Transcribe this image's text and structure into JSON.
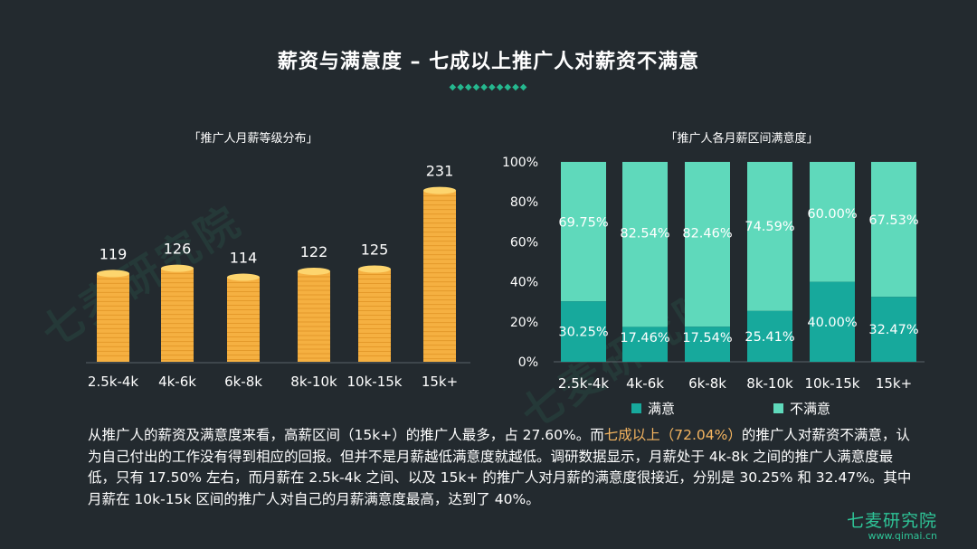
{
  "title": "薪资与满意度 – 七成以上推广人对薪资不满意",
  "decor": "◆◆◆◆◆◆◆◆◆◆",
  "watermark": "七麦研究院",
  "chart_data": [
    {
      "type": "bar",
      "title": "「推广人月薪等级分布」",
      "categories": [
        "2.5k-4k",
        "4k-6k",
        "6k-8k",
        "8k-10k",
        "10k-15k",
        "15k+"
      ],
      "values": [
        119,
        126,
        114,
        122,
        125,
        231
      ],
      "colors": {
        "bar": "#f5b041",
        "top": "#fdd56e"
      }
    },
    {
      "type": "bar",
      "stacked": true,
      "title": "「推广人各月薪区间满意度」",
      "categories": [
        "2.5k-4k",
        "4k-6k",
        "6k-8k",
        "8k-10k",
        "10k-15k",
        "15k+"
      ],
      "y_ticks": [
        "0%",
        "20%",
        "40%",
        "60%",
        "80%",
        "100%"
      ],
      "ylim": [
        0,
        100
      ],
      "series": [
        {
          "name": "满意",
          "values": [
            30.25,
            17.46,
            17.54,
            25.41,
            40.0,
            32.47
          ],
          "labels": [
            "30.25%",
            "17.46%",
            "17.54%",
            "25.41%",
            "40.00%",
            "32.47%"
          ],
          "color": "#17a99c"
        },
        {
          "name": "不满意",
          "values": [
            69.75,
            82.54,
            82.46,
            74.59,
            60.0,
            67.53
          ],
          "labels": [
            "69.75%",
            "82.54%",
            "82.46%",
            "74.59%",
            "60.00%",
            "67.53%"
          ],
          "color": "#5fd9bb"
        }
      ]
    }
  ],
  "paragraph": {
    "p1": "从推广人的薪资及满意度来看，高薪区间（15k+）的推广人最多，占 27.60%。而",
    "highlight": "七成以上（72.04%）",
    "p2": "的推广人对薪资不满意，认为自己付出的工作没有得到相应的回报。但并不是月薪越低满意度就越低。调研数据显示，月薪处于 4k-8k 之间的推广人满意度最低，只有 17.50% 左右，而月薪在 2.5k-4k 之间、以及 15k+ 的推广人对月薪的满意度很接近，分别是 30.25% 和 32.47%。其中月薪在 10k-15k 区间的推广人对自己的月薪满意度最高，达到了 40%。"
  },
  "logo": {
    "name": "七麦研究院",
    "url": "www.qimai.cn"
  }
}
